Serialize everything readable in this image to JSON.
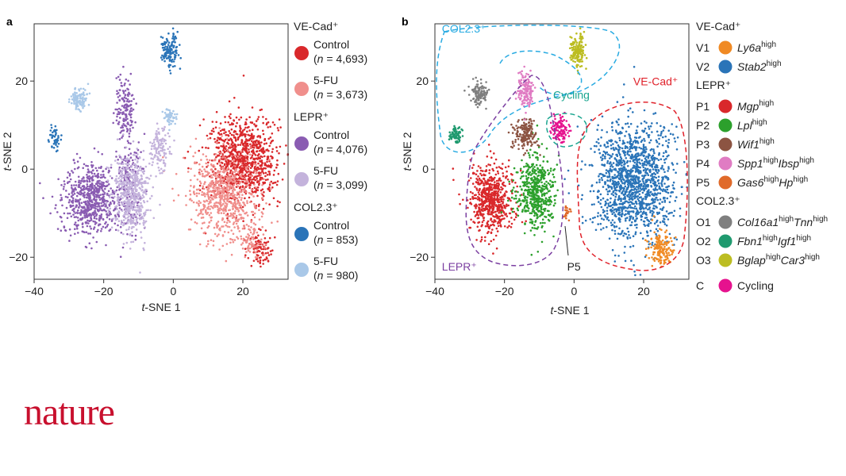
{
  "logo": "nature",
  "chart_data": [
    {
      "type": "scatter",
      "panel": "a",
      "xlabel_prefix": "t",
      "xlabel_rest": "-SNE 1",
      "ylabel_prefix": "t",
      "ylabel_rest": "-SNE 2",
      "xlim": [
        -40,
        33
      ],
      "ylim": [
        -25,
        33
      ],
      "xticks": [
        -40,
        -20,
        0,
        20
      ],
      "yticks": [
        -20,
        0,
        20
      ],
      "legend": [
        {
          "group": "VE-Cad⁺",
          "group_color": "#e0212a",
          "items": [
            {
              "label": "Control",
              "n_prefix": "n",
              "n_rest": " = 4,693",
              "color": "#d9282b",
              "series": "vecad_ctrl"
            },
            {
              "label": "5-FU",
              "n_prefix": "n",
              "n_rest": " = 3,673",
              "color": "#f08f8c",
              "series": "vecad_5fu"
            }
          ]
        },
        {
          "group": "LEPR⁺",
          "group_color": "#7b3fa1",
          "items": [
            {
              "label": "Control",
              "n_prefix": "n",
              "n_rest": " = 4,076",
              "color": "#8a5cb2",
              "series": "lepr_ctrl"
            },
            {
              "label": "5-FU",
              "n_prefix": "n",
              "n_rest": " = 3,099",
              "color": "#c4b3dc",
              "series": "lepr_5fu"
            }
          ]
        },
        {
          "group": "COL2.3⁺",
          "group_color": "#29abe2",
          "items": [
            {
              "label": "Control",
              "n_prefix": "n",
              "n_rest": " = 853",
              "color": "#2a74b8",
              "series": "col_ctrl"
            },
            {
              "label": "5-FU",
              "n_prefix": "n",
              "n_rest": " = 980",
              "color": "#a9c8e8",
              "series": "col_5fu"
            }
          ]
        }
      ],
      "series": {
        "vecad_ctrl": {
          "color": "#d9282b",
          "clusters": [
            {
              "cx": 20,
              "cy": 2,
              "rx": 11,
              "ry": 11,
              "n": 950
            },
            {
              "cx": 25,
              "cy": -18,
              "rx": 4,
              "ry": 5,
              "n": 90
            }
          ]
        },
        "vecad_5fu": {
          "color": "#f08f8c",
          "clusters": [
            {
              "cx": 14,
              "cy": -6,
              "rx": 11,
              "ry": 11,
              "n": 650
            },
            {
              "cx": 22,
              "cy": -16,
              "rx": 5,
              "ry": 5,
              "n": 80
            }
          ]
        },
        "lepr_ctrl": {
          "color": "#8a5cb2",
          "clusters": [
            {
              "cx": -24,
              "cy": -7,
              "rx": 9,
              "ry": 9,
              "n": 650
            },
            {
              "cx": -14,
              "cy": 14,
              "rx": 3,
              "ry": 7,
              "n": 150
            },
            {
              "cx": -13,
              "cy": -3,
              "rx": 4,
              "ry": 12,
              "n": 200
            }
          ]
        },
        "lepr_5fu": {
          "color": "#c4b3dc",
          "clusters": [
            {
              "cx": -12,
              "cy": -6,
              "rx": 6,
              "ry": 11,
              "n": 500
            },
            {
              "cx": -4,
              "cy": 5,
              "rx": 3,
              "ry": 6,
              "n": 120
            }
          ]
        },
        "col_ctrl": {
          "color": "#2a74b8",
          "clusters": [
            {
              "cx": -1,
              "cy": 27,
              "rx": 3,
              "ry": 4,
              "n": 130
            },
            {
              "cx": -34,
              "cy": 7,
              "rx": 2,
              "ry": 3,
              "n": 45
            }
          ]
        },
        "col_5fu": {
          "color": "#a9c8e8",
          "clusters": [
            {
              "cx": -27,
              "cy": 16,
              "rx": 3,
              "ry": 3,
              "n": 110
            },
            {
              "cx": -1,
              "cy": 12,
              "rx": 2,
              "ry": 2,
              "n": 50
            }
          ]
        }
      }
    },
    {
      "type": "scatter",
      "panel": "b",
      "xlabel_prefix": "t",
      "xlabel_rest": "-SNE 1",
      "ylabel_prefix": "t",
      "ylabel_rest": "-SNE 2",
      "xlim": [
        -40,
        33
      ],
      "ylim": [
        -25,
        33
      ],
      "xticks": [
        -40,
        -20,
        0,
        20
      ],
      "yticks": [
        -20,
        0,
        20
      ],
      "region_labels": [
        {
          "text": "COL2.3⁺",
          "color": "#29abe2",
          "x": -38,
          "y": 31
        },
        {
          "text": "VE-Cad⁺",
          "color": "#e0212a",
          "x": 17,
          "y": 19
        },
        {
          "text": "Cycling",
          "color": "#1aa58f",
          "x": -6,
          "y": 16
        },
        {
          "text": "LEPR⁺",
          "color": "#7b3fa1",
          "x": -38,
          "y": -23
        },
        {
          "text": "P5",
          "color": "#222222",
          "x": -2,
          "y": -23
        }
      ],
      "legend": [
        {
          "group": "VE-Cad⁺",
          "group_color": "#e0212a",
          "items": [
            {
              "code": "V1",
              "name": "Ly6a",
              "sup": "high",
              "name2": "",
              "sup2": "",
              "color": "#f08a24",
              "series": "V1"
            },
            {
              "code": "V2",
              "name": "Stab2",
              "sup": "high",
              "name2": "",
              "sup2": "",
              "color": "#2a74b8",
              "series": "V2"
            }
          ]
        },
        {
          "group": "LEPR⁺",
          "group_color": "#7b3fa1",
          "items": [
            {
              "code": "P1",
              "name": "Mgp",
              "sup": "high",
              "name2": "",
              "sup2": "",
              "color": "#d9282b",
              "series": "P1"
            },
            {
              "code": "P2",
              "name": "Lpl",
              "sup": "high",
              "name2": "",
              "sup2": "",
              "color": "#2ca02c",
              "series": "P2"
            },
            {
              "code": "P3",
              "name": "Wif1",
              "sup": "high",
              "name2": "",
              "sup2": "",
              "color": "#8c5442",
              "series": "P3"
            },
            {
              "code": "P4",
              "name": "Spp1",
              "sup": "high",
              "name2": "Ibsp",
              "sup2": "high",
              "color": "#e07cc3",
              "series": "P4"
            },
            {
              "code": "P5",
              "name": "Gas6",
              "sup": "high",
              "name2": "Hp",
              "sup2": "high",
              "color": "#e06a2a",
              "series": "P5"
            }
          ]
        },
        {
          "group": "COL2.3⁺",
          "group_color": "#29abe2",
          "items": [
            {
              "code": "O1",
              "name": "Col16a1",
              "sup": "high",
              "name2": "Tnn",
              "sup2": "high",
              "color": "#7f7f7f",
              "series": "O1"
            },
            {
              "code": "O2",
              "name": "Fbn1",
              "sup": "high",
              "name2": "Igf1",
              "sup2": "high",
              "color": "#1f9a6f",
              "series": "O2"
            },
            {
              "code": "O3",
              "name": "Bglap",
              "sup": "high",
              "name2": "Car3",
              "sup2": "high",
              "color": "#bcbd22",
              "series": "O3"
            }
          ]
        },
        {
          "group": "",
          "group_color": "#222222",
          "items": [
            {
              "code": "C",
              "name": "",
              "sup": "",
              "name2": "",
              "sup2": "",
              "plain": "Cycling",
              "color": "#e6128e",
              "series": "C"
            }
          ]
        }
      ],
      "series": {
        "V2": {
          "color": "#2a74b8",
          "clusters": [
            {
              "cx": 17,
              "cy": -3,
              "rx": 13,
              "ry": 15,
              "n": 1400
            }
          ]
        },
        "V1": {
          "color": "#f08a24",
          "clusters": [
            {
              "cx": 25,
              "cy": -18,
              "rx": 4,
              "ry": 5,
              "n": 150
            }
          ]
        },
        "P1": {
          "color": "#d9282b",
          "clusters": [
            {
              "cx": -24,
              "cy": -7,
              "rx": 7,
              "ry": 9,
              "n": 600
            }
          ]
        },
        "P2": {
          "color": "#2ca02c",
          "clusters": [
            {
              "cx": -11,
              "cy": -5,
              "rx": 6,
              "ry": 9,
              "n": 500
            }
          ]
        },
        "P3": {
          "color": "#8c5442",
          "clusters": [
            {
              "cx": -14,
              "cy": 8,
              "rx": 4,
              "ry": 4,
              "n": 180
            }
          ]
        },
        "P4": {
          "color": "#e07cc3",
          "clusters": [
            {
              "cx": -14,
              "cy": 18,
              "rx": 2.5,
              "ry": 4,
              "n": 150
            }
          ]
        },
        "P5": {
          "color": "#e06a2a",
          "clusters": [
            {
              "cx": -2,
              "cy": -10,
              "rx": 1,
              "ry": 1.5,
              "n": 20
            }
          ]
        },
        "O1": {
          "color": "#7f7f7f",
          "clusters": [
            {
              "cx": -27,
              "cy": 17,
              "rx": 3,
              "ry": 3,
              "n": 120
            }
          ]
        },
        "O2": {
          "color": "#1f9a6f",
          "clusters": [
            {
              "cx": -34,
              "cy": 8,
              "rx": 2,
              "ry": 2,
              "n": 70
            }
          ]
        },
        "O3": {
          "color": "#bcbd22",
          "clusters": [
            {
              "cx": 1,
              "cy": 27,
              "rx": 2.5,
              "ry": 4,
              "n": 150
            }
          ]
        },
        "C": {
          "color": "#e6128e",
          "clusters": [
            {
              "cx": -4,
              "cy": 9,
              "rx": 3,
              "ry": 3,
              "n": 110
            }
          ]
        }
      }
    }
  ]
}
